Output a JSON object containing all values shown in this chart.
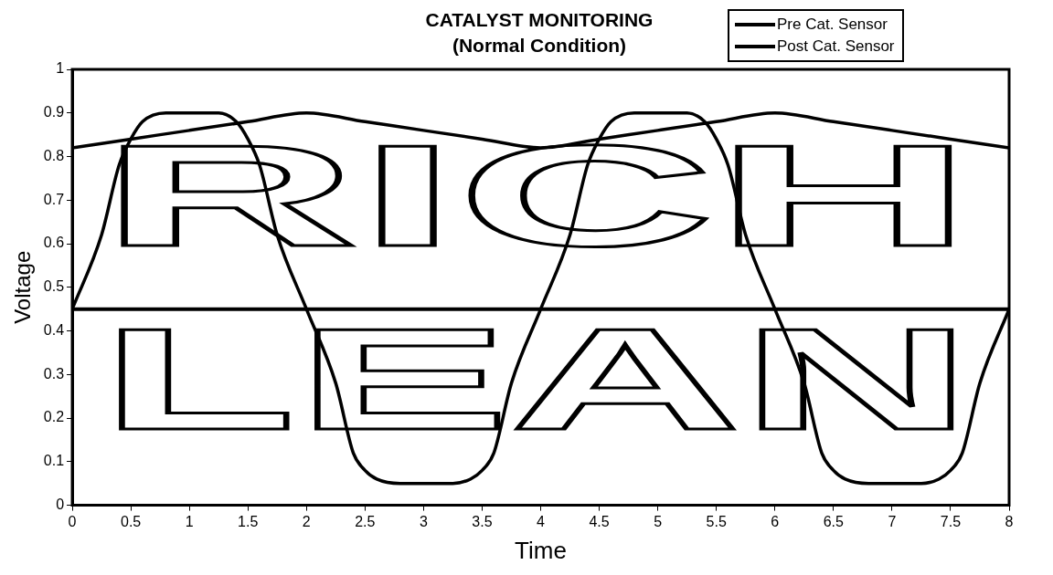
{
  "chart_data": {
    "type": "line",
    "title": "CATALYST MONITORING",
    "subtitle": "(Normal Condition)",
    "xlabel": "Time",
    "ylabel": "Voltage",
    "xlim": [
      0,
      8
    ],
    "xticks": [
      0,
      0.5,
      1,
      1.5,
      2,
      2.5,
      3,
      3.5,
      4,
      4.5,
      5,
      5.5,
      6,
      6.5,
      7,
      7.5,
      8
    ],
    "ylim": [
      0,
      1
    ],
    "yticks": [
      0,
      0.1,
      0.2,
      0.3,
      0.4,
      0.5,
      0.6,
      0.7,
      0.8,
      0.9,
      1
    ],
    "grid": false,
    "legend": "top right",
    "marker": "none",
    "series": [
      {
        "name": "Pre Cat. Sensor",
        "color": "#000000",
        "x": [
          0,
          0.25,
          0.4,
          0.5,
          0.6,
          0.8,
          1,
          1.25,
          1.4,
          1.5,
          1.6,
          1.75,
          2,
          2.25,
          2.4,
          2.5,
          2.6,
          2.8,
          3,
          3.25,
          3.4,
          3.5,
          3.6,
          3.75,
          4,
          4.25,
          4.4,
          4.5,
          4.6,
          4.8,
          5,
          5.25,
          5.4,
          5.5,
          5.6,
          5.75,
          6,
          6.25,
          6.4,
          6.5,
          6.6,
          6.8,
          7,
          7.25,
          7.4,
          7.5,
          7.6,
          7.75,
          8
        ],
        "values": [
          0.45,
          0.62,
          0.78,
          0.84,
          0.88,
          0.9,
          0.9,
          0.9,
          0.88,
          0.84,
          0.78,
          0.62,
          0.45,
          0.28,
          0.12,
          0.08,
          0.06,
          0.05,
          0.05,
          0.05,
          0.06,
          0.08,
          0.12,
          0.28,
          0.45,
          0.62,
          0.78,
          0.84,
          0.88,
          0.9,
          0.9,
          0.9,
          0.88,
          0.84,
          0.78,
          0.62,
          0.45,
          0.28,
          0.12,
          0.08,
          0.06,
          0.05,
          0.05,
          0.05,
          0.06,
          0.08,
          0.12,
          0.28,
          0.45
        ]
      },
      {
        "name": "Post Cat. Sensor",
        "color": "#000000",
        "x": [
          0,
          0.5,
          1,
          1.5,
          2,
          2.5,
          3,
          3.5,
          4,
          4.5,
          5,
          5.5,
          6,
          6.5,
          7,
          7.5,
          8
        ],
        "values": [
          0.82,
          0.84,
          0.86,
          0.88,
          0.9,
          0.88,
          0.86,
          0.84,
          0.82,
          0.84,
          0.86,
          0.88,
          0.9,
          0.88,
          0.86,
          0.84,
          0.82
        ]
      }
    ],
    "ref_lines": [
      {
        "axis": "y",
        "value": 0.45,
        "color": "#000000"
      }
    ],
    "annotations": [
      "RICH",
      "LEAN"
    ]
  }
}
